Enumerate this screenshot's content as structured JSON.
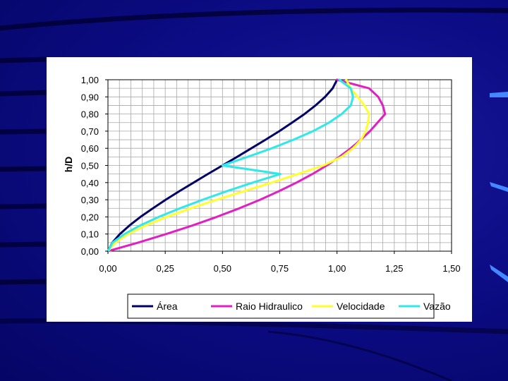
{
  "slide": {
    "background_color": "#0c0c86"
  },
  "chart_data": {
    "type": "line",
    "title": "",
    "xlabel": "",
    "ylabel": "h/D",
    "xlim": [
      0,
      1.5
    ],
    "ylim": [
      0,
      1
    ],
    "x_ticks": [
      "0,00",
      "0,25",
      "0,50",
      "0,75",
      "1,00",
      "1,25",
      "1,50"
    ],
    "y_ticks": [
      "0,00",
      "0,10",
      "0,20",
      "0,30",
      "0,40",
      "0,50",
      "0,60",
      "0,70",
      "0,80",
      "0,90",
      "1,00"
    ],
    "grid": true,
    "legend_position": "bottom",
    "y": [
      0.0,
      0.05,
      0.1,
      0.15,
      0.2,
      0.25,
      0.3,
      0.35,
      0.4,
      0.45,
      0.5,
      0.55,
      0.6,
      0.65,
      0.7,
      0.75,
      0.8,
      0.85,
      0.9,
      0.95,
      1.0
    ],
    "series": [
      {
        "name": "Área",
        "color": "#000066",
        "x": [
          0.0,
          0.019,
          0.052,
          0.094,
          0.142,
          0.196,
          0.252,
          0.312,
          0.374,
          0.436,
          0.5,
          0.564,
          0.626,
          0.688,
          0.748,
          0.804,
          0.858,
          0.906,
          0.948,
          0.981,
          1.0
        ]
      },
      {
        "name": "Raio Hidraulico",
        "color": "#e020c0",
        "x": [
          0.0,
          0.131,
          0.254,
          0.369,
          0.475,
          0.573,
          0.664,
          0.747,
          0.823,
          0.893,
          0.955,
          1.01,
          1.06,
          1.104,
          1.144,
          1.177,
          1.21,
          1.2,
          1.18,
          1.14,
          1.0
        ]
      },
      {
        "name": "Velocidade",
        "color": "#ffff30",
        "x": [
          0.0,
          0.031,
          0.088,
          0.165,
          0.257,
          0.361,
          0.474,
          0.594,
          0.715,
          0.83,
          0.94,
          1.02,
          1.07,
          1.105,
          1.125,
          1.135,
          1.14,
          1.12,
          1.09,
          1.06,
          1.04
        ]
      },
      {
        "name": "Vazão",
        "color": "#30e8e8",
        "x": [
          0.0,
          0.02,
          0.072,
          0.14,
          0.222,
          0.314,
          0.413,
          0.519,
          0.632,
          0.753,
          0.5,
          0.61,
          0.715,
          0.81,
          0.895,
          0.965,
          1.02,
          1.06,
          1.07,
          1.06,
          1.01
        ]
      }
    ]
  }
}
